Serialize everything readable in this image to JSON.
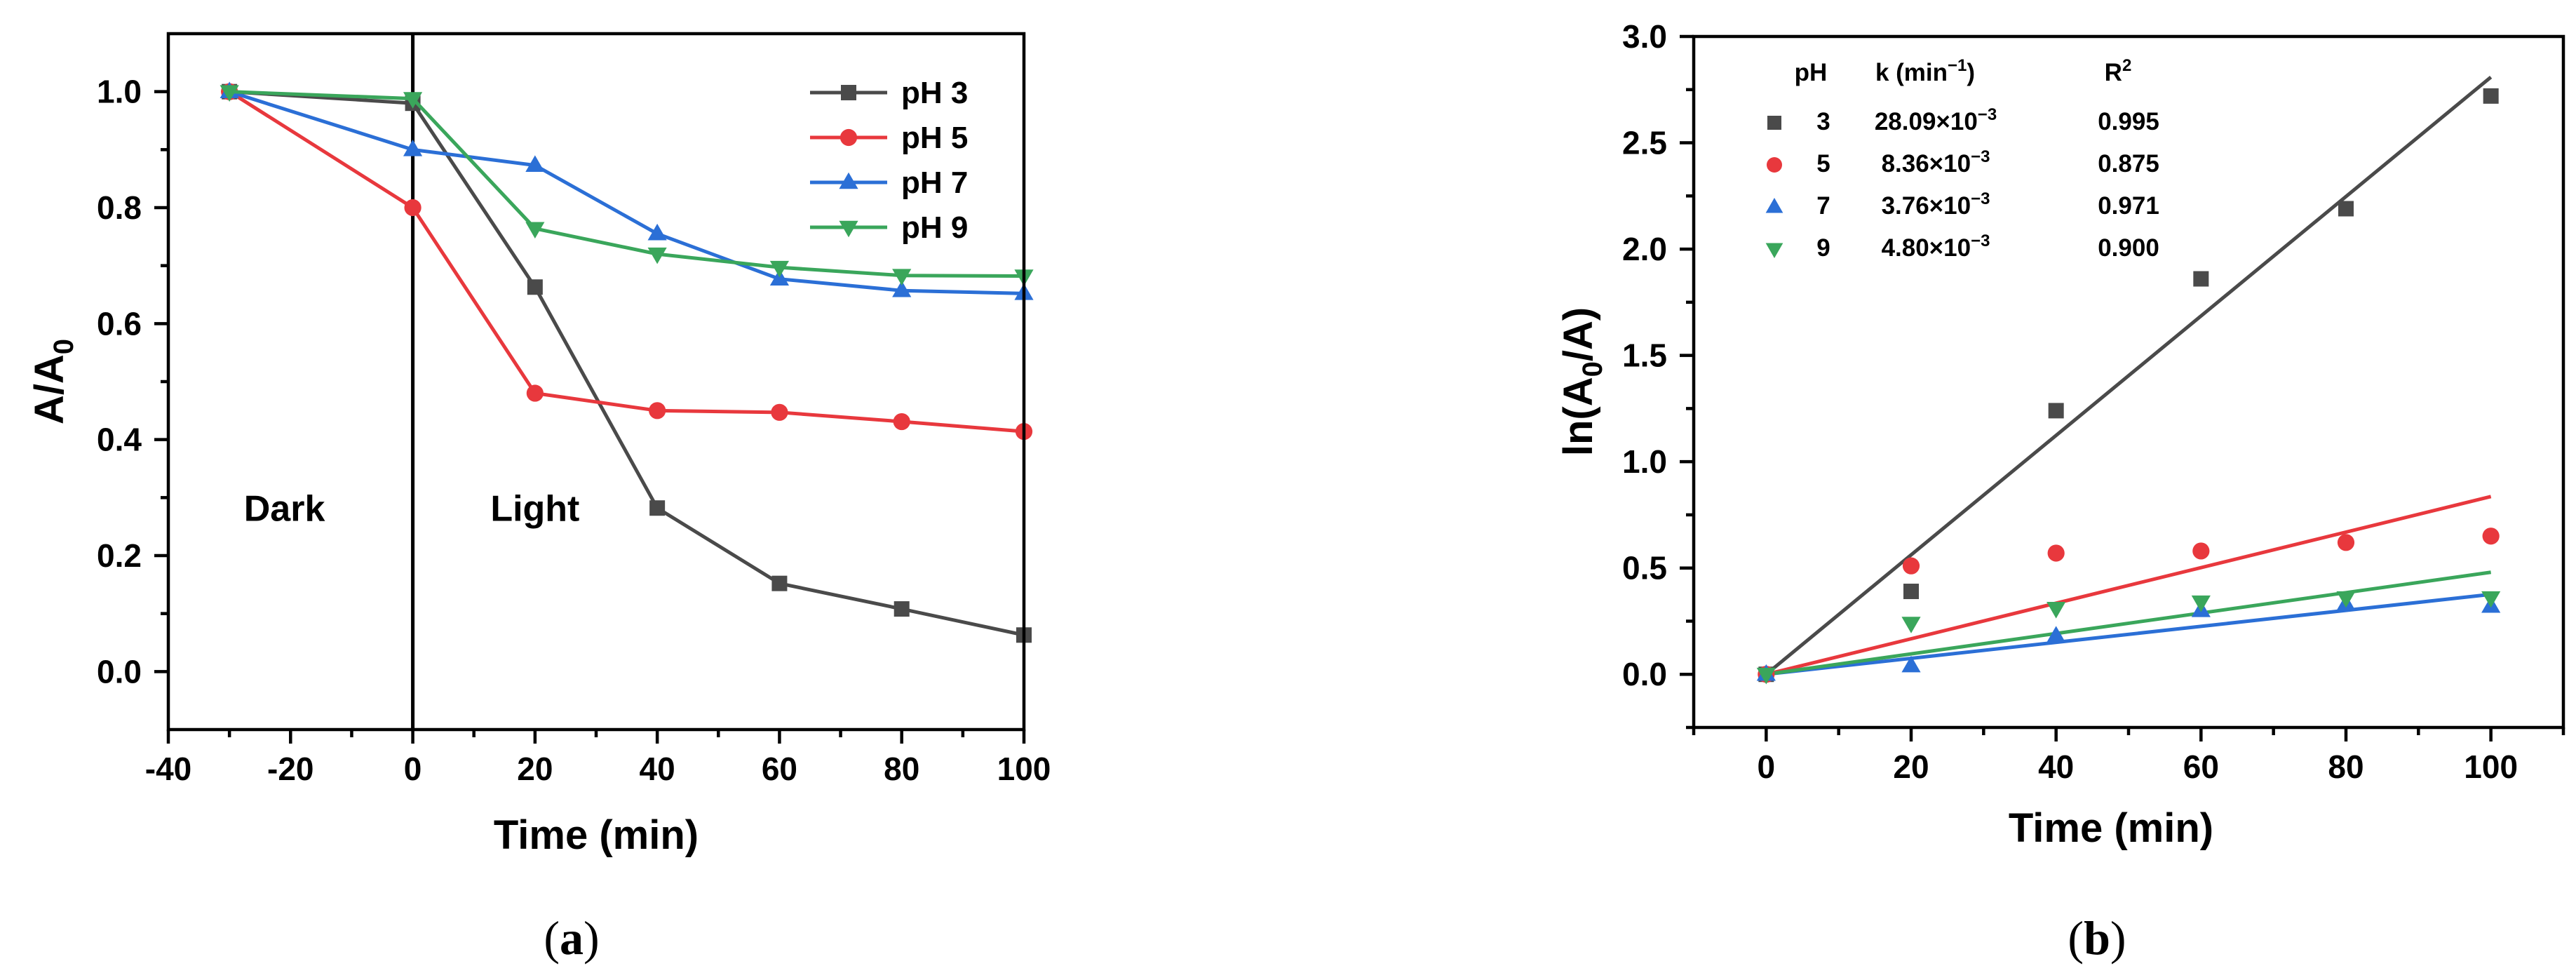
{
  "chart_data": [
    {
      "id": "a",
      "type": "line",
      "caption_open": "(",
      "caption_letter": "a",
      "caption_close": ")",
      "xlabel": "Time (min)",
      "ylabel_main": "A/A",
      "ylabel_sub": "0",
      "xlim": [
        -40,
        100
      ],
      "ylim": [
        -0.1,
        1.1
      ],
      "xticks": [
        -40,
        -20,
        0,
        20,
        40,
        60,
        80,
        100
      ],
      "xtick_labels": [
        "-40",
        "-20",
        "0",
        "20",
        "40",
        "60",
        "80",
        "100"
      ],
      "yticks": [
        0.0,
        0.2,
        0.4,
        0.6,
        0.8,
        1.0
      ],
      "ytick_labels": [
        "0.0",
        "0.2",
        "0.4",
        "0.6",
        "0.8",
        "1.0"
      ],
      "vline_x": 0,
      "annotations": [
        {
          "text": "Dark",
          "x": -21,
          "y": 0.26
        },
        {
          "text": "Light",
          "x": 20,
          "y": 0.26
        }
      ],
      "x": [
        -30,
        0,
        20,
        40,
        60,
        80,
        100
      ],
      "series": [
        {
          "name": "pH 3",
          "color": "#4a4a4a",
          "marker": "square",
          "values": [
            1.0,
            0.98,
            0.663,
            0.282,
            0.152,
            0.108,
            0.063
          ]
        },
        {
          "name": "pH 5",
          "color": "#e8383d",
          "marker": "circle",
          "values": [
            1.0,
            0.8,
            0.48,
            0.45,
            0.447,
            0.431,
            0.414
          ]
        },
        {
          "name": "pH 7",
          "color": "#2b6fd6",
          "marker": "triangle-up",
          "values": [
            1.0,
            0.9,
            0.873,
            0.755,
            0.677,
            0.657,
            0.652
          ]
        },
        {
          "name": "pH 9",
          "color": "#3aa65b",
          "marker": "triangle-down",
          "values": [
            1.0,
            0.988,
            0.764,
            0.72,
            0.697,
            0.683,
            0.682
          ]
        }
      ],
      "legend_position": "top-right"
    },
    {
      "id": "b",
      "type": "scatter",
      "caption_open": "(",
      "caption_letter": "b",
      "caption_close": ")",
      "xlabel": "Time (min)",
      "ylabel_pre": "ln(A",
      "ylabel_sub": "0",
      "ylabel_post": "/A)",
      "xlim": [
        -10,
        110
      ],
      "ylim": [
        -0.25,
        3.0
      ],
      "xticks": [
        0,
        20,
        40,
        60,
        80,
        100
      ],
      "xtick_labels": [
        "0",
        "20",
        "40",
        "60",
        "80",
        "100"
      ],
      "yticks": [
        0.0,
        0.5,
        1.0,
        1.5,
        2.0,
        2.5,
        3.0
      ],
      "ytick_labels": [
        "0.0",
        "0.5",
        "1.0",
        "1.5",
        "2.0",
        "2.5",
        "3.0"
      ],
      "x": [
        0,
        20,
        40,
        60,
        80,
        100
      ],
      "series": [
        {
          "name": "3",
          "color": "#4a4a4a",
          "marker": "square",
          "values": [
            0.0,
            0.39,
            1.24,
            1.86,
            2.19,
            2.72
          ],
          "fit_slope": 0.02809
        },
        {
          "name": "5",
          "color": "#e8383d",
          "marker": "circle",
          "values": [
            0.0,
            0.51,
            0.57,
            0.58,
            0.62,
            0.65
          ],
          "fit_slope": 0.00836
        },
        {
          "name": "7",
          "color": "#2b6fd6",
          "marker": "triangle-up",
          "values": [
            0.0,
            0.04,
            0.18,
            0.3,
            0.33,
            0.32
          ],
          "fit_slope": 0.00376
        },
        {
          "name": "9",
          "color": "#3aa65b",
          "marker": "triangle-down",
          "values": [
            0.0,
            0.24,
            0.31,
            0.34,
            0.36,
            0.36
          ],
          "fit_slope": 0.0048
        }
      ],
      "table_header": {
        "ph": "pH",
        "k_pre": "k (min",
        "k_sup": "−1",
        "k_post": ")",
        "r_main": "R",
        "r_sup": "2"
      },
      "table_rows": [
        {
          "ph": "3",
          "k_pre": "28.09×10",
          "k_sup": "−3",
          "r2": "0.995"
        },
        {
          "ph": "5",
          "k_pre": "8.36×10",
          "k_sup": "−3",
          "r2": "0.875"
        },
        {
          "ph": "7",
          "k_pre": "3.76×10",
          "k_sup": "−3",
          "r2": "0.971"
        },
        {
          "ph": "9",
          "k_pre": "4.80×10",
          "k_sup": "−3",
          "r2": "0.900"
        }
      ],
      "legend_position": "top-left"
    }
  ]
}
